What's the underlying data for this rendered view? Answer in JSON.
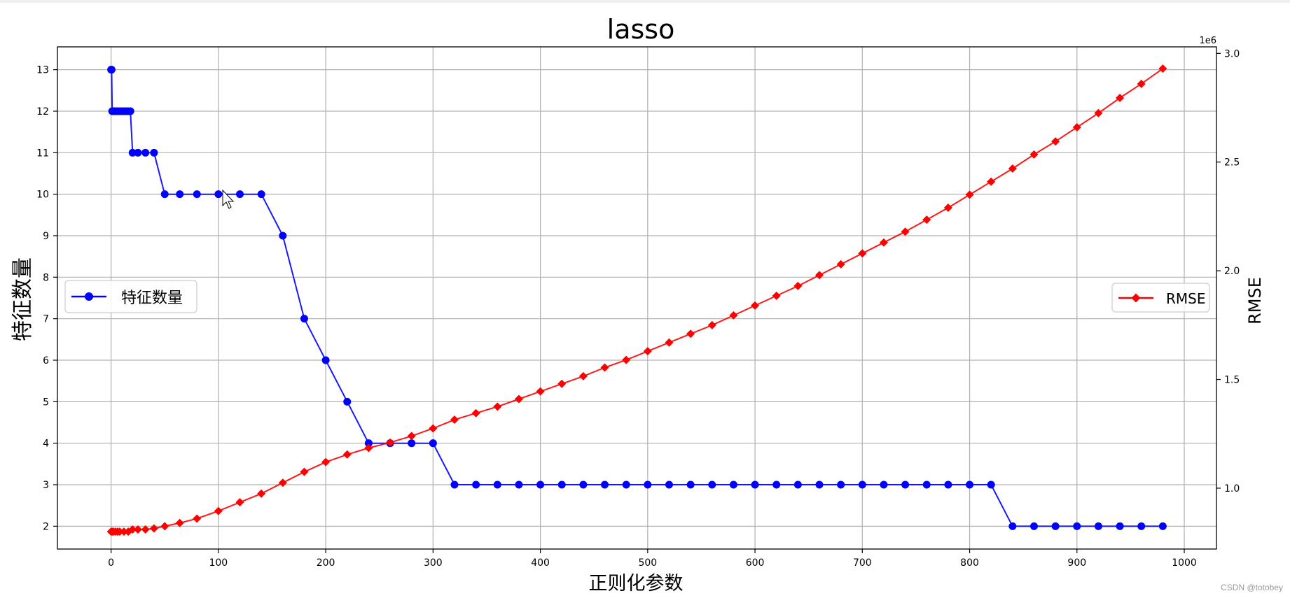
{
  "chart_data": {
    "type": "line",
    "title": "lasso",
    "xlabel": "正则化参数",
    "ylabel_left": "特征数量",
    "ylabel_right": "RMSE",
    "right_axis_multiplier": "1e6",
    "xlim": [
      -50,
      1030
    ],
    "ylim_left": [
      1.45,
      13.55
    ],
    "ylim_right": [
      0.72,
      3.03
    ],
    "x_ticks": [
      0,
      100,
      200,
      300,
      400,
      500,
      600,
      700,
      800,
      900,
      1000
    ],
    "y_left_ticks": [
      2,
      3,
      4,
      5,
      6,
      7,
      8,
      9,
      10,
      11,
      12,
      13
    ],
    "y_right_ticks": [
      1.0,
      1.5,
      2.0,
      2.5,
      3.0
    ],
    "grid": true,
    "legend_left_position": "center-left",
    "legend_right_position": "center-right",
    "series": [
      {
        "name": "特征数量",
        "axis": "left",
        "color": "#0000ff",
        "marker": "circle",
        "x": [
          0,
          0.5,
          1,
          2,
          3,
          4,
          6,
          8,
          10,
          12,
          14,
          16,
          18,
          20,
          25,
          32,
          40,
          50,
          64,
          80,
          100,
          120,
          140,
          160,
          180,
          200,
          220,
          240,
          260,
          280,
          300,
          320,
          340,
          360,
          380,
          400,
          420,
          440,
          460,
          480,
          500,
          520,
          540,
          560,
          580,
          600,
          620,
          640,
          660,
          680,
          700,
          720,
          740,
          760,
          780,
          800,
          820,
          840,
          860,
          880,
          900,
          920,
          940,
          960,
          980
        ],
        "y": [
          13,
          13,
          12,
          12,
          12,
          12,
          12,
          12,
          12,
          12,
          12,
          12,
          12,
          11,
          11,
          11,
          11,
          10,
          10,
          10,
          10,
          10,
          10,
          9,
          7,
          6,
          5,
          4,
          4,
          4,
          4,
          3,
          3,
          3,
          3,
          3,
          3,
          3,
          3,
          3,
          3,
          3,
          3,
          3,
          3,
          3,
          3,
          3,
          3,
          3,
          3,
          3,
          3,
          3,
          3,
          3,
          3,
          2,
          2,
          2,
          2,
          2,
          2,
          2,
          2
        ]
      },
      {
        "name": "RMSE",
        "axis": "right",
        "color": "#ff0000",
        "marker": "diamond",
        "x": [
          0,
          1,
          2,
          4,
          6,
          8,
          12,
          16,
          20,
          25,
          32,
          40,
          50,
          64,
          80,
          100,
          120,
          140,
          160,
          180,
          200,
          220,
          240,
          260,
          280,
          300,
          320,
          340,
          360,
          380,
          400,
          420,
          440,
          460,
          480,
          500,
          520,
          540,
          560,
          580,
          600,
          620,
          640,
          660,
          680,
          700,
          720,
          740,
          760,
          780,
          800,
          820,
          840,
          860,
          880,
          900,
          920,
          940,
          960,
          980
        ],
        "y": [
          0.8,
          0.8,
          0.8,
          0.8,
          0.8,
          0.8,
          0.8,
          0.8,
          0.81,
          0.81,
          0.81,
          0.815,
          0.825,
          0.84,
          0.86,
          0.895,
          0.935,
          0.975,
          1.025,
          1.075,
          1.12,
          1.155,
          1.185,
          1.21,
          1.24,
          1.275,
          1.315,
          1.345,
          1.375,
          1.41,
          1.445,
          1.48,
          1.515,
          1.555,
          1.59,
          1.63,
          1.67,
          1.71,
          1.75,
          1.795,
          1.84,
          1.885,
          1.93,
          1.98,
          2.03,
          2.08,
          2.13,
          2.18,
          2.235,
          2.29,
          2.35,
          2.41,
          2.47,
          2.535,
          2.595,
          2.66,
          2.725,
          2.795,
          2.86,
          2.93
        ]
      }
    ]
  },
  "watermark": "CSDN @totobey"
}
